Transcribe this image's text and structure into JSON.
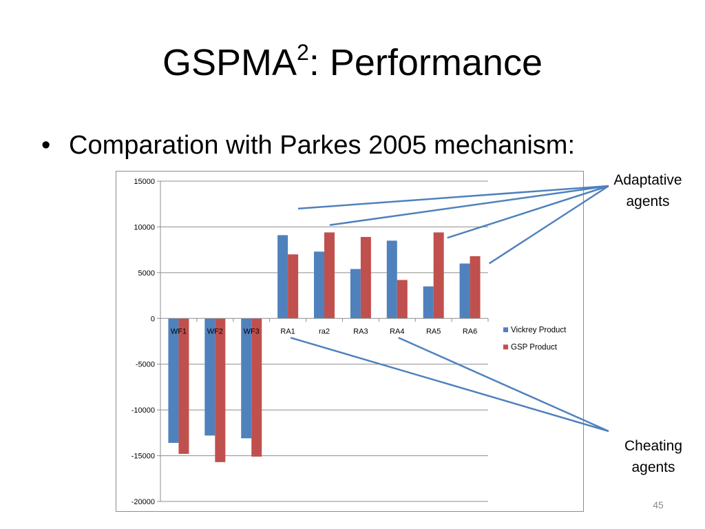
{
  "slide": {
    "title_main": "GSPMA",
    "title_sup": "2",
    "title_rest": ": Performance",
    "bullet_char": "•",
    "bullet_text": "Comparation with Parkes 2005 mechanism:",
    "page_number": "45"
  },
  "callouts": {
    "adaptive_line1": "Adaptative",
    "adaptive_line2": "agents",
    "cheating_line1": "Cheating",
    "cheating_line2": "agents",
    "adaptive_targets": [
      "ra2",
      "RA3",
      "RA5",
      "RA6"
    ],
    "cheating_targets": [
      "RA1",
      "RA4"
    ]
  },
  "chart_data": {
    "type": "bar",
    "categories": [
      "WF1",
      "WF2",
      "WF3",
      "RA1",
      "ra2",
      "RA3",
      "RA4",
      "RA5",
      "RA6"
    ],
    "series": [
      {
        "name": "Vickrey Product",
        "color": "#4f81bd",
        "values": [
          -13600,
          -12800,
          -13100,
          9100,
          7300,
          5400,
          8500,
          3500,
          6000
        ]
      },
      {
        "name": "GSP Product",
        "color": "#c0504d",
        "values": [
          -14800,
          -15700,
          -15100,
          7000,
          9400,
          8900,
          4200,
          9400,
          6800
        ]
      }
    ],
    "ylim": [
      -20000,
      15000
    ],
    "yticks": [
      15000,
      10000,
      5000,
      0,
      -5000,
      -10000,
      -15000,
      -20000
    ],
    "title": "",
    "xlabel": "",
    "ylabel": "",
    "grid": true,
    "legend": "right",
    "line_color": "#4f81bd"
  }
}
